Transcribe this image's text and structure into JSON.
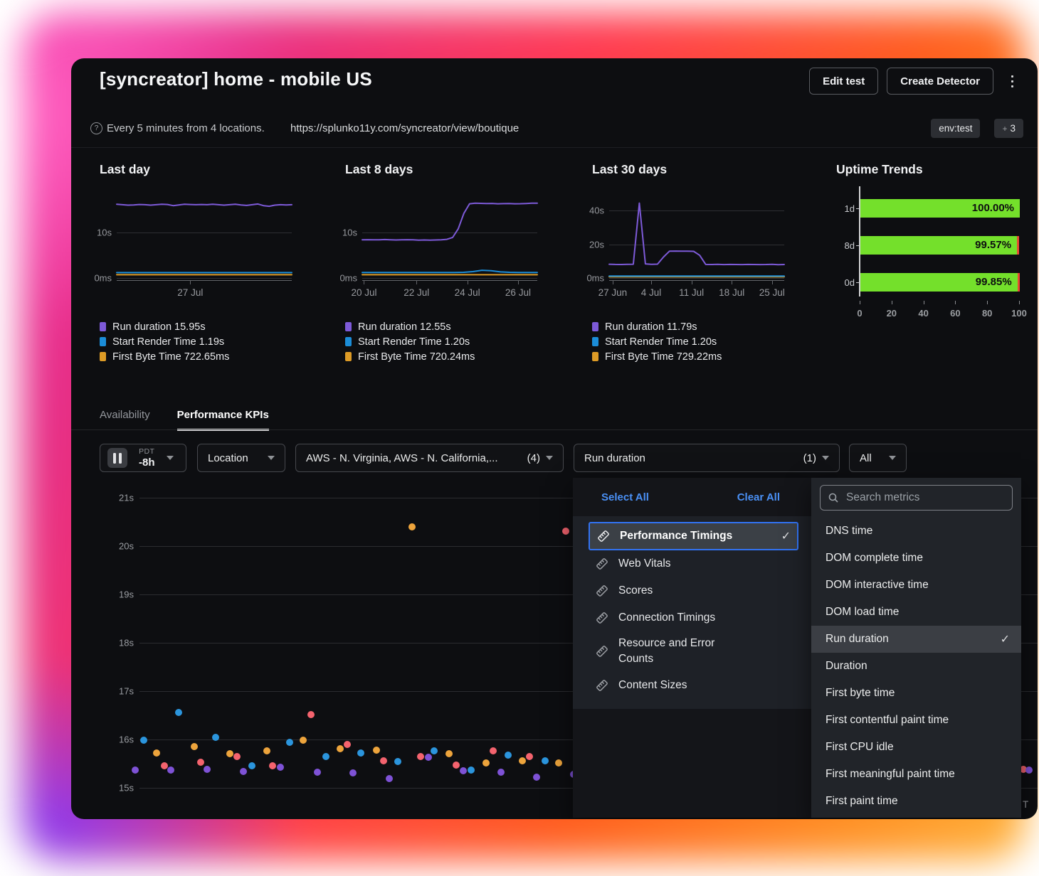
{
  "header": {
    "title": "[syncreator] home - mobile US",
    "actions": {
      "edit_test": "Edit test",
      "create_detector": "Create Detector"
    }
  },
  "subheader": {
    "schedule": "Every 5 minutes from 4 locations.",
    "url": "https://splunko11y.com/syncreator/view/boutique",
    "env_badge": "env:test",
    "more_badge_plus": "+",
    "more_badge_count": "3"
  },
  "tabs": {
    "availability": "Availability",
    "performance": "Performance KPIs"
  },
  "filters": {
    "time_zone": "PDT",
    "time_range": "-8h",
    "location_label": "Location",
    "locations_value": "AWS - N. Virginia, AWS - N. California,...",
    "locations_count": "(4)",
    "metrics_value": "Run duration",
    "metrics_count": "(1)",
    "scope_value": "All"
  },
  "metric_picker": {
    "select_all": "Select All",
    "clear_all": "Clear All",
    "categories": [
      {
        "label": "Performance Timings",
        "selected": true
      },
      {
        "label": "Web Vitals",
        "selected": false
      },
      {
        "label": "Scores",
        "selected": false
      },
      {
        "label": "Connection Timings",
        "selected": false
      },
      {
        "label": "Resource and Error Counts",
        "selected": false
      },
      {
        "label": "Content Sizes",
        "selected": false
      }
    ],
    "search_placeholder": "Search metrics",
    "metrics": [
      {
        "label": "DNS time",
        "selected": false
      },
      {
        "label": "DOM complete time",
        "selected": false
      },
      {
        "label": "DOM interactive time",
        "selected": false
      },
      {
        "label": "DOM load time",
        "selected": false
      },
      {
        "label": "Run duration",
        "selected": true
      },
      {
        "label": "Duration",
        "selected": false
      },
      {
        "label": "First byte time",
        "selected": false
      },
      {
        "label": "First contentful paint time",
        "selected": false
      },
      {
        "label": "First CPU idle",
        "selected": false
      },
      {
        "label": "First meaningful paint time",
        "selected": false
      },
      {
        "label": "First paint time",
        "selected": false
      }
    ]
  },
  "colors": {
    "run_duration": "#7d5ad8",
    "start_render": "#1b8dd8",
    "first_byte": "#dd9b26",
    "uptime_green": "#74e02b",
    "uptime_red": "#e84a33",
    "scatter": {
      "blue": "#2b95dd",
      "orange": "#eda43c",
      "pink": "#f4636e",
      "purple": "#7e52d6"
    }
  },
  "chart_data": [
    {
      "id": "last_day",
      "type": "line",
      "title": "Last day",
      "y_max": 20.3,
      "y_gridlines": [
        {
          "label": "10s",
          "value": 10
        },
        {
          "label": "0ms",
          "value": 0
        }
      ],
      "x_ticks": [
        "27 Jul"
      ],
      "x_tick_pos": [
        0.42
      ],
      "series": [
        {
          "name": "Run duration",
          "color_key": "run_duration",
          "values": [
            16.2,
            16.1,
            16.0,
            16.05,
            16.15,
            16.1,
            16.0,
            16.1,
            16.2,
            16.15,
            15.9,
            16.05,
            16.2,
            16.15,
            16.1,
            16.15,
            16.1,
            16.2,
            16.1,
            16.0,
            16.1,
            16.2,
            16.05,
            15.95,
            16.1,
            16.25,
            15.9,
            15.75,
            16.0,
            16.1,
            16.05,
            16.1
          ]
        },
        {
          "name": "Start Render Time",
          "color_key": "start_render",
          "values": [
            1.19,
            1.19
          ]
        },
        {
          "name": "First Byte Time",
          "color_key": "first_byte",
          "values": [
            0.72,
            0.72
          ]
        }
      ],
      "legend": [
        {
          "label": "Run duration",
          "value": "15.95s",
          "color_key": "run_duration"
        },
        {
          "label": "Start Render Time",
          "value": "1.19s",
          "color_key": "start_render"
        },
        {
          "label": "First Byte Time",
          "value": "722.65ms",
          "color_key": "first_byte"
        }
      ]
    },
    {
      "id": "last_8_days",
      "type": "line",
      "title": "Last 8 days",
      "y_max": 20.3,
      "y_gridlines": [
        {
          "label": "10s",
          "value": 10
        },
        {
          "label": "0ms",
          "value": 0
        }
      ],
      "x_ticks": [
        "20 Jul",
        "22 Jul",
        "24 Jul",
        "26 Jul"
      ],
      "x_tick_pos": [
        0.01,
        0.31,
        0.6,
        0.89
      ],
      "series": [
        {
          "name": "Run duration",
          "color_key": "run_duration",
          "values": [
            8.4,
            8.42,
            8.38,
            8.4,
            8.45,
            8.4,
            8.35,
            8.4,
            8.42,
            8.38,
            8.3,
            8.35,
            8.3,
            8.35,
            8.4,
            8.5,
            8.9,
            10.8,
            14.2,
            16.3,
            16.45,
            16.4,
            16.35,
            16.38,
            16.3,
            16.33,
            16.36,
            16.3,
            16.32,
            16.36,
            16.42,
            16.45
          ]
        },
        {
          "name": "Start Render Time",
          "color_key": "start_render",
          "values": [
            1.2,
            1.2,
            1.2,
            1.2,
            1.2,
            1.2,
            1.2,
            1.2,
            1.2,
            1.2,
            1.2,
            1.25,
            1.4,
            1.7,
            1.6,
            1.35,
            1.25,
            1.2,
            1.2,
            1.2
          ]
        },
        {
          "name": "First Byte Time",
          "color_key": "first_byte",
          "values": [
            0.72,
            0.72
          ]
        }
      ],
      "legend": [
        {
          "label": "Run duration",
          "value": "12.55s",
          "color_key": "run_duration"
        },
        {
          "label": "Start Render Time",
          "value": "1.20s",
          "color_key": "start_render"
        },
        {
          "label": "First Byte Time",
          "value": "720.24ms",
          "color_key": "first_byte"
        }
      ]
    },
    {
      "id": "last_30_days",
      "type": "line",
      "title": "Last 30 days",
      "y_max": 55,
      "y_gridlines": [
        {
          "label": "40s",
          "value": 40
        },
        {
          "label": "20s",
          "value": 20
        },
        {
          "label": "0ms",
          "value": 0
        }
      ],
      "x_ticks": [
        "27 Jun",
        "4 Jul",
        "11 Jul",
        "18 Jul",
        "25 Jul"
      ],
      "x_tick_pos": [
        0.02,
        0.24,
        0.47,
        0.7,
        0.93
      ],
      "series": [
        {
          "name": "Run duration",
          "color_key": "run_duration",
          "values": [
            8.2,
            8.1,
            8.05,
            8.15,
            8.2,
            44.6,
            8.4,
            8.15,
            8.25,
            12.5,
            16.0,
            16.05,
            15.95,
            16.0,
            15.85,
            13.5,
            8.1,
            8.05,
            8.15,
            8.0,
            8.1,
            8.05,
            8.0,
            8.1,
            8.05,
            8.0,
            8.05,
            8.15,
            7.95,
            8.05
          ]
        },
        {
          "name": "Start Render Time",
          "color_key": "start_render",
          "values": [
            1.2,
            1.2
          ]
        },
        {
          "name": "First Byte Time",
          "color_key": "first_byte",
          "values": [
            0.73,
            0.73
          ]
        }
      ],
      "legend": [
        {
          "label": "Run duration",
          "value": "11.79s",
          "color_key": "run_duration"
        },
        {
          "label": "Start Render Time",
          "value": "1.20s",
          "color_key": "start_render"
        },
        {
          "label": "First Byte Time",
          "value": "729.22ms",
          "color_key": "first_byte"
        }
      ]
    },
    {
      "id": "uptime_trends",
      "type": "bar",
      "title": "Uptime Trends",
      "categories": [
        "1d",
        "8d",
        "0d"
      ],
      "values": [
        100.0,
        99.57,
        99.85
      ],
      "labels": [
        "100.00%",
        "99.57%",
        "99.85%"
      ],
      "x_ticks": [
        0,
        20,
        40,
        60,
        80,
        100
      ],
      "xlim": [
        0,
        100
      ]
    },
    {
      "id": "performance_kpis_scatter",
      "type": "scatter",
      "y_ticks": [
        {
          "label": "21s",
          "sec": 21
        },
        {
          "label": "20s",
          "sec": 20
        },
        {
          "label": "19s",
          "sec": 19
        },
        {
          "label": "18s",
          "sec": 18
        },
        {
          "label": "17s",
          "sec": 17
        },
        {
          "label": "16s",
          "sec": 16
        },
        {
          "label": "15s",
          "sec": 15
        }
      ],
      "ylim": [
        14.8,
        21.3
      ],
      "x_axis_fragment": "T",
      "points": [
        [
          52,
          15.99,
          "blue"
        ],
        [
          40,
          15.37,
          "purple"
        ],
        [
          70,
          15.72,
          "orange"
        ],
        [
          81,
          15.46,
          "pink"
        ],
        [
          90,
          15.37,
          "purple"
        ],
        [
          101,
          16.56,
          "blue"
        ],
        [
          123,
          15.85,
          "orange"
        ],
        [
          132,
          15.53,
          "pink"
        ],
        [
          141,
          15.38,
          "purple"
        ],
        [
          153,
          16.04,
          "blue"
        ],
        [
          173,
          15.71,
          "orange"
        ],
        [
          183,
          15.65,
          "pink"
        ],
        [
          192,
          15.34,
          "purple"
        ],
        [
          204,
          15.46,
          "blue"
        ],
        [
          225,
          15.76,
          "orange"
        ],
        [
          233,
          15.46,
          "pink"
        ],
        [
          244,
          15.43,
          "purple"
        ],
        [
          257,
          15.94,
          "blue"
        ],
        [
          276,
          15.99,
          "orange"
        ],
        [
          287,
          16.51,
          "pink"
        ],
        [
          296,
          15.32,
          "purple"
        ],
        [
          308,
          15.65,
          "blue"
        ],
        [
          328,
          15.81,
          "orange"
        ],
        [
          338,
          15.9,
          "pink"
        ],
        [
          346,
          15.31,
          "purple"
        ],
        [
          357,
          15.72,
          "blue"
        ],
        [
          379,
          15.78,
          "orange"
        ],
        [
          389,
          15.56,
          "pink"
        ],
        [
          397,
          15.19,
          "purple"
        ],
        [
          409,
          15.54,
          "blue"
        ],
        [
          429,
          20.4,
          "orange"
        ],
        [
          441,
          15.65,
          "pink"
        ],
        [
          452,
          15.63,
          "purple"
        ],
        [
          460,
          15.76,
          "blue"
        ],
        [
          481,
          15.71,
          "orange"
        ],
        [
          491,
          15.47,
          "pink"
        ],
        [
          501,
          15.35,
          "purple"
        ],
        [
          512,
          15.37,
          "blue"
        ],
        [
          533,
          15.51,
          "orange"
        ],
        [
          543,
          15.76,
          "pink"
        ],
        [
          554,
          15.32,
          "purple"
        ],
        [
          564,
          15.68,
          "blue"
        ],
        [
          584,
          15.56,
          "orange"
        ],
        [
          594,
          15.65,
          "pink"
        ],
        [
          604,
          15.22,
          "purple"
        ],
        [
          616,
          15.56,
          "blue"
        ],
        [
          635,
          15.51,
          "orange"
        ],
        [
          645,
          20.31,
          "pink"
        ],
        [
          656,
          15.28,
          "purple"
        ],
        [
          1288,
          15.38,
          "pink"
        ],
        [
          1296,
          15.37,
          "purple"
        ]
      ]
    }
  ]
}
